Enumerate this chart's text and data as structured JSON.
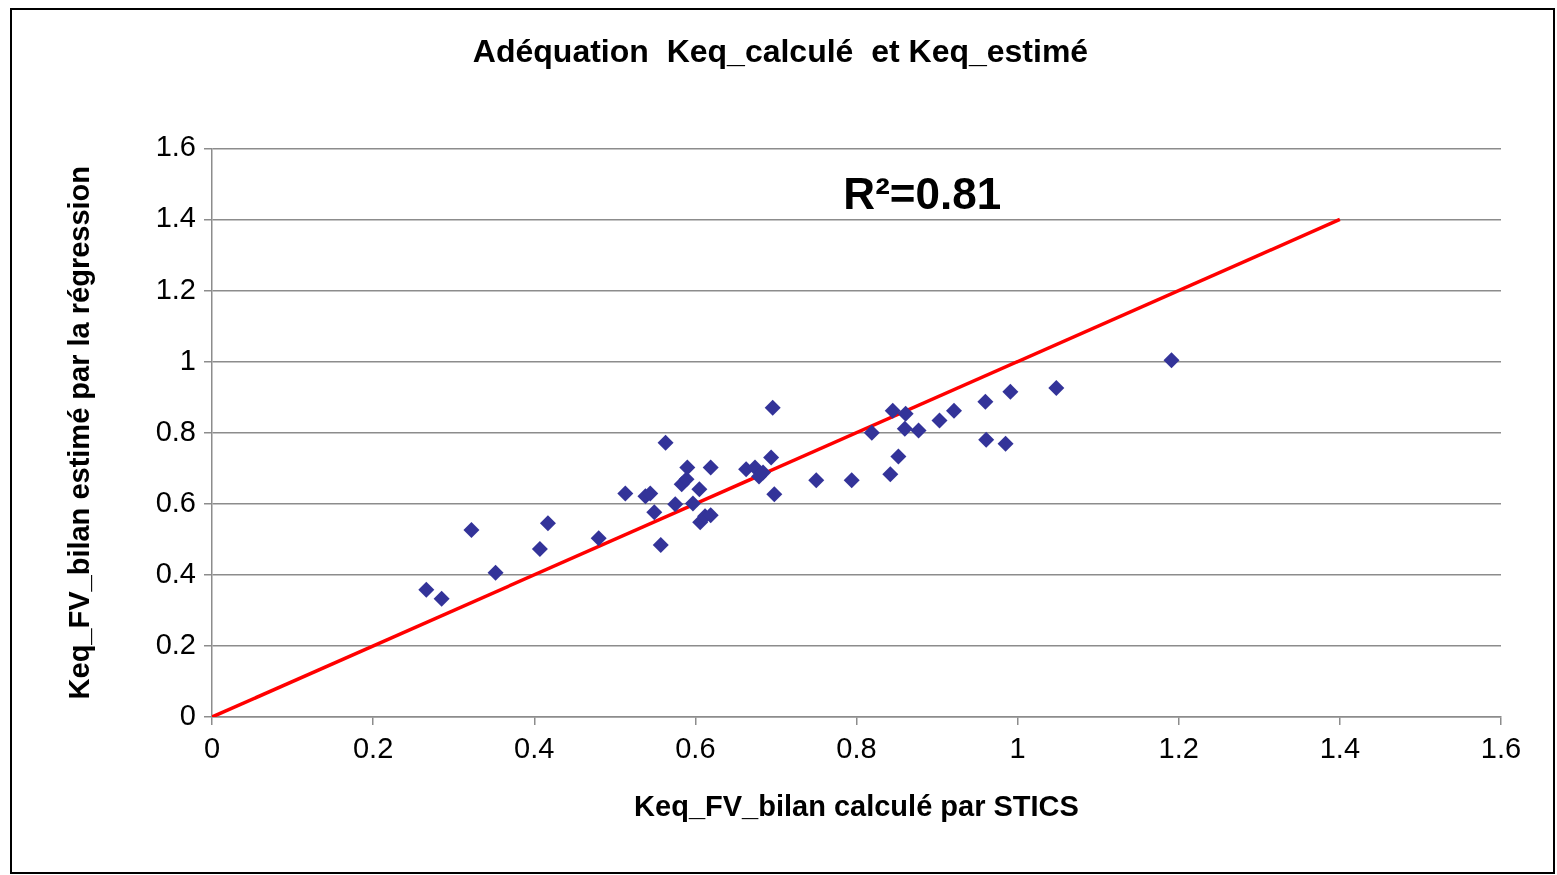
{
  "chart_data": {
    "type": "scatter",
    "title": "Adéquation  Keq_calculé  et Keq_estimé",
    "xlabel": "Keq_FV_bilan calculé par STICS",
    "ylabel": "Keq_FV_bilan estimé par la régression",
    "xlim": [
      0,
      1.6
    ],
    "xticks": [
      0,
      0.2,
      0.4,
      0.6,
      0.8,
      1,
      1.2,
      1.4,
      1.6
    ],
    "ylim": [
      0,
      1.6
    ],
    "yticks": [
      0,
      0.2,
      0.4,
      0.6,
      0.8,
      1,
      1.2,
      1.4,
      1.6
    ],
    "grid": "y",
    "annotations": [
      "R²=0.81"
    ],
    "series": [
      {
        "color": "#333399",
        "marker": "diamond",
        "x": [
          0.266,
          0.285,
          0.322,
          0.352,
          0.407,
          0.417,
          0.48,
          0.513,
          0.538,
          0.544,
          0.549,
          0.557,
          0.563,
          0.575,
          0.583,
          0.589,
          0.59,
          0.597,
          0.605,
          0.606,
          0.612,
          0.619,
          0.619,
          0.663,
          0.674,
          0.679,
          0.684,
          0.694,
          0.696,
          0.698,
          0.75,
          0.794,
          0.819,
          0.842,
          0.845,
          0.852,
          0.86,
          0.861,
          0.877,
          0.903,
          0.921,
          0.96,
          0.961,
          0.985,
          0.991,
          1.048,
          1.191
        ],
        "values": [
          0.358,
          0.333,
          0.526,
          0.406,
          0.473,
          0.545,
          0.503,
          0.629,
          0.621,
          0.629,
          0.576,
          0.484,
          0.772,
          0.599,
          0.655,
          0.669,
          0.702,
          0.601,
          0.641,
          0.548,
          0.565,
          0.568,
          0.702,
          0.697,
          0.702,
          0.677,
          0.688,
          0.73,
          0.87,
          0.627,
          0.666,
          0.666,
          0.8,
          0.683,
          0.862,
          0.733,
          0.811,
          0.853,
          0.806,
          0.834,
          0.862,
          0.887,
          0.78,
          0.769,
          0.915,
          0.926,
          1.004
        ]
      },
      {
        "type": "line",
        "color": "#ff0000",
        "marker": "none",
        "x": [
          0,
          1.4
        ],
        "values": [
          0,
          1.4
        ]
      }
    ]
  }
}
